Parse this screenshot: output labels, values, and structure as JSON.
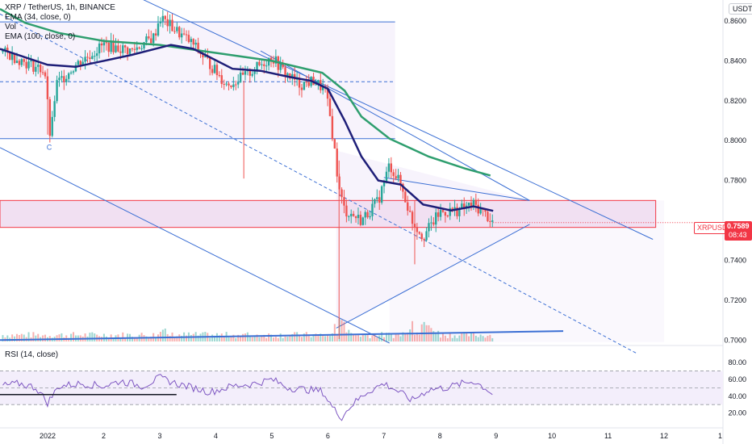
{
  "legend": {
    "symbol": "XRP / TetherUS, 1h, BINANCE",
    "ema34": "EMA (34, close, 0)",
    "vol": "Vol",
    "ema100": "EMA (100, close, 0)"
  },
  "currency": "USDT",
  "price_tag": {
    "symbol": "XRPUSDT",
    "price": "0.7589",
    "countdown": "08:43"
  },
  "annotation": "C",
  "rsi_label": "RSI (14, close)",
  "colors": {
    "up": "#26a69a",
    "down": "#ef5350",
    "ema34": "#1e1e78",
    "ema100": "#2e9e6e",
    "trendline": "#3b6fd4",
    "zone_border": "#f23645",
    "zone_fill": "#f1e0f2",
    "rsi": "#7e57c2",
    "price_tag": "#f23645"
  },
  "chart_data": {
    "type": "candlestick",
    "title": "XRP / TetherUS, 1h, BINANCE",
    "x_ticks": [
      "2022",
      "2",
      "3",
      "4",
      "5",
      "6",
      "7",
      "8",
      "9",
      "10",
      "11",
      "12",
      "1"
    ],
    "y_ticks": [
      "0.8600",
      "0.8400",
      "0.8200",
      "0.8000",
      "0.7800",
      "0.7400",
      "0.7200",
      "0.7000"
    ],
    "ylim": [
      0.6985,
      0.8705
    ],
    "x_range_days": [
      0.15,
      13.05
    ],
    "last_price": 0.7589,
    "price_path": [
      [
        0.15,
        0.845
      ],
      [
        0.4,
        0.842
      ],
      [
        0.7,
        0.838
      ],
      [
        0.95,
        0.835
      ],
      [
        1.05,
        0.8
      ],
      [
        1.15,
        0.828
      ],
      [
        1.5,
        0.838
      ],
      [
        2.0,
        0.848
      ],
      [
        2.5,
        0.845
      ],
      [
        2.9,
        0.852
      ],
      [
        3.0,
        0.862
      ],
      [
        3.3,
        0.855
      ],
      [
        3.6,
        0.848
      ],
      [
        3.9,
        0.838
      ],
      [
        4.2,
        0.828
      ],
      [
        4.5,
        0.832
      ],
      [
        4.8,
        0.838
      ],
      [
        5.0,
        0.842
      ],
      [
        5.2,
        0.835
      ],
      [
        5.5,
        0.828
      ],
      [
        5.75,
        0.83
      ],
      [
        5.95,
        0.825
      ],
      [
        6.05,
        0.81
      ],
      [
        6.12,
        0.795
      ],
      [
        6.2,
        0.775
      ],
      [
        6.3,
        0.765
      ],
      [
        6.6,
        0.76
      ],
      [
        6.9,
        0.77
      ],
      [
        7.1,
        0.788
      ],
      [
        7.3,
        0.778
      ],
      [
        7.5,
        0.76
      ],
      [
        7.7,
        0.752
      ],
      [
        8.0,
        0.764
      ],
      [
        8.3,
        0.765
      ],
      [
        8.6,
        0.768
      ],
      [
        8.85,
        0.762
      ],
      [
        8.95,
        0.7589
      ]
    ],
    "ema34": [
      [
        0.15,
        0.846
      ],
      [
        1.0,
        0.838
      ],
      [
        1.5,
        0.837
      ],
      [
        2.5,
        0.843
      ],
      [
        3.2,
        0.848
      ],
      [
        3.6,
        0.846
      ],
      [
        4.3,
        0.836
      ],
      [
        4.8,
        0.835
      ],
      [
        5.3,
        0.832
      ],
      [
        5.7,
        0.83
      ],
      [
        6.0,
        0.826
      ],
      [
        6.3,
        0.81
      ],
      [
        6.6,
        0.792
      ],
      [
        6.9,
        0.78
      ],
      [
        7.3,
        0.778
      ],
      [
        7.7,
        0.768
      ],
      [
        8.2,
        0.765
      ],
      [
        8.6,
        0.767
      ],
      [
        8.95,
        0.7648
      ]
    ],
    "ema100": [
      [
        0.15,
        0.866
      ],
      [
        0.6,
        0.859
      ],
      [
        1.2,
        0.854
      ],
      [
        2.0,
        0.85
      ],
      [
        3.0,
        0.848
      ],
      [
        4.0,
        0.844
      ],
      [
        5.0,
        0.84
      ],
      [
        5.9,
        0.834
      ],
      [
        6.3,
        0.825
      ],
      [
        6.6,
        0.812
      ],
      [
        7.1,
        0.801
      ],
      [
        7.8,
        0.792
      ],
      [
        8.45,
        0.786
      ],
      [
        8.9,
        0.7825
      ]
    ],
    "zone": [
      0.7565,
      0.77
    ],
    "hlines": [
      {
        "y": 0.8595,
        "style": "solid",
        "x": [
          0.15,
          7.2
        ]
      },
      {
        "y": 0.8295,
        "style": "dashed",
        "x": [
          0.15,
          7.2
        ]
      },
      {
        "y": 0.801,
        "style": "solid",
        "x": [
          0.15,
          7.2
        ]
      }
    ],
    "trendlines": [
      {
        "from": [
          2.0,
          0.88
        ],
        "to": [
          11.8,
          0.7505
        ],
        "style": "solid"
      },
      {
        "from": [
          0.15,
          0.8635
        ],
        "to": [
          11.5,
          0.6935
        ],
        "style": "dashed"
      },
      {
        "from": [
          0.15,
          0.7965
        ],
        "to": [
          7.1,
          0.6985
        ],
        "style": "solid"
      },
      {
        "from": [
          4.8,
          0.845
        ],
        "to": [
          9.6,
          0.77
        ],
        "style": "solid"
      },
      {
        "from": [
          7.0,
          0.7815
        ],
        "to": [
          9.6,
          0.77
        ],
        "style": "solid"
      },
      {
        "from": [
          6.15,
          0.706
        ],
        "to": [
          9.6,
          0.758
        ],
        "style": "solid"
      }
    ],
    "volume_trendline": {
      "from": [
        0.15,
        0.7
      ],
      "to": [
        10.2,
        0.7045
      ]
    },
    "rsi": {
      "ylim": [
        10,
        84
      ],
      "y_ticks": [
        "80.00",
        "60.00",
        "40.00",
        "20.00"
      ],
      "bands": [
        70,
        50,
        30
      ],
      "path": [
        [
          0.15,
          52
        ],
        [
          0.5,
          55
        ],
        [
          0.8,
          50
        ],
        [
          1.0,
          32
        ],
        [
          1.2,
          52
        ],
        [
          1.6,
          55
        ],
        [
          2.0,
          52
        ],
        [
          2.3,
          58
        ],
        [
          2.7,
          52
        ],
        [
          3.0,
          62
        ],
        [
          3.3,
          55
        ],
        [
          3.6,
          50
        ],
        [
          3.9,
          45
        ],
        [
          4.3,
          52
        ],
        [
          4.7,
          55
        ],
        [
          5.0,
          60
        ],
        [
          5.3,
          50
        ],
        [
          5.6,
          48
        ],
        [
          5.9,
          46
        ],
        [
          6.1,
          25
        ],
        [
          6.25,
          15
        ],
        [
          6.4,
          28
        ],
        [
          6.7,
          45
        ],
        [
          7.0,
          55
        ],
        [
          7.2,
          48
        ],
        [
          7.5,
          35
        ],
        [
          7.8,
          48
        ],
        [
          8.1,
          50
        ],
        [
          8.4,
          55
        ],
        [
          8.6,
          58
        ],
        [
          8.85,
          48
        ],
        [
          8.95,
          42
        ]
      ],
      "drawn_line": {
        "from": [
          0.15,
          42
        ],
        "to": [
          3.3,
          42
        ]
      }
    }
  }
}
